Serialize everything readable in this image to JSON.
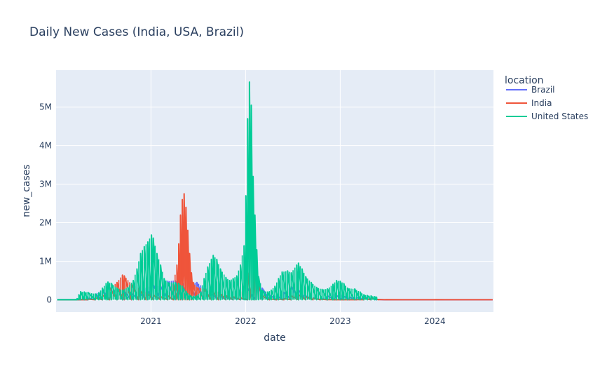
{
  "chart_data": {
    "type": "line",
    "title": "Daily New Cases (India, USA, Brazil)",
    "xlabel": "date",
    "ylabel": "new_cases",
    "x_axis": {
      "type": "date",
      "range": [
        "2020-01-01",
        "2024-08-14"
      ],
      "ticks": [
        "2021-01-01",
        "2022-01-01",
        "2023-01-01",
        "2024-01-01"
      ],
      "tick_labels": [
        "2021",
        "2022",
        "2023",
        "2024"
      ]
    },
    "y_axis": {
      "range": [
        -320000,
        5960000
      ],
      "ticks": [
        0,
        1000000,
        2000000,
        3000000,
        4000000,
        5000000
      ],
      "tick_labels": [
        "0",
        "1M",
        "2M",
        "3M",
        "4M",
        "5M"
      ]
    },
    "grid": true,
    "legend": {
      "title": "location",
      "placement": "right",
      "entries": [
        "Brazil",
        "India",
        "United States"
      ]
    },
    "series": [
      {
        "name": "Brazil",
        "color": "#636efa",
        "points": [
          [
            "2020-01-05",
            0
          ],
          [
            "2020-03-08",
            0
          ],
          [
            "2020-04-05",
            8000
          ],
          [
            "2020-05-03",
            40000
          ],
          [
            "2020-05-31",
            150000
          ],
          [
            "2020-06-28",
            250000
          ],
          [
            "2020-07-26",
            320000
          ],
          [
            "2020-08-23",
            280000
          ],
          [
            "2020-09-20",
            210000
          ],
          [
            "2020-10-18",
            160000
          ],
          [
            "2020-11-15",
            200000
          ],
          [
            "2020-12-13",
            300000
          ],
          [
            "2021-01-10",
            380000
          ],
          [
            "2021-02-07",
            350000
          ],
          [
            "2021-03-07",
            480000
          ],
          [
            "2021-04-04",
            500000
          ],
          [
            "2021-05-02",
            430000
          ],
          [
            "2021-05-30",
            420000
          ],
          [
            "2021-06-27",
            450000
          ],
          [
            "2021-07-25",
            300000
          ],
          [
            "2021-08-22",
            150000
          ],
          [
            "2021-09-19",
            120000
          ],
          [
            "2021-10-17",
            70000
          ],
          [
            "2021-11-14",
            60000
          ],
          [
            "2021-12-12",
            30000
          ],
          [
            "2022-01-09",
            300000
          ],
          [
            "2022-02-06",
            800000
          ],
          [
            "2022-03-06",
            300000
          ],
          [
            "2022-04-03",
            120000
          ],
          [
            "2022-05-01",
            100000
          ],
          [
            "2022-05-29",
            200000
          ],
          [
            "2022-06-26",
            350000
          ],
          [
            "2022-07-24",
            250000
          ],
          [
            "2022-08-21",
            100000
          ],
          [
            "2022-09-18",
            50000
          ],
          [
            "2022-10-16",
            30000
          ],
          [
            "2022-11-13",
            100000
          ],
          [
            "2022-12-11",
            150000
          ],
          [
            "2023-01-08",
            120000
          ],
          [
            "2023-02-05",
            70000
          ],
          [
            "2023-03-05",
            60000
          ],
          [
            "2023-04-02",
            50000
          ],
          [
            "2023-04-30",
            30000
          ],
          [
            "2023-05-21",
            10000
          ],
          [
            "2023-06-18",
            0
          ],
          [
            "2024-08-11",
            0
          ]
        ]
      },
      {
        "name": "India",
        "color": "#ef553b",
        "points": [
          [
            "2020-01-05",
            0
          ],
          [
            "2020-03-08",
            0
          ],
          [
            "2020-04-05",
            3000
          ],
          [
            "2020-05-03",
            15000
          ],
          [
            "2020-05-31",
            50000
          ],
          [
            "2020-06-28",
            120000
          ],
          [
            "2020-07-26",
            300000
          ],
          [
            "2020-08-23",
            450000
          ],
          [
            "2020-09-13",
            640000
          ],
          [
            "2020-09-20",
            620000
          ],
          [
            "2020-10-18",
            400000
          ],
          [
            "2020-11-15",
            300000
          ],
          [
            "2020-12-13",
            200000
          ],
          [
            "2021-01-10",
            120000
          ],
          [
            "2021-02-07",
            80000
          ],
          [
            "2021-03-07",
            110000
          ],
          [
            "2021-03-28",
            400000
          ],
          [
            "2021-04-11",
            900000
          ],
          [
            "2021-04-18",
            1450000
          ],
          [
            "2021-04-25",
            2200000
          ],
          [
            "2021-05-02",
            2600000
          ],
          [
            "2021-05-09",
            2750000
          ],
          [
            "2021-05-16",
            2400000
          ],
          [
            "2021-05-23",
            1800000
          ],
          [
            "2021-05-30",
            1200000
          ],
          [
            "2021-06-06",
            700000
          ],
          [
            "2021-06-13",
            450000
          ],
          [
            "2021-06-27",
            320000
          ],
          [
            "2021-07-25",
            280000
          ],
          [
            "2021-08-22",
            250000
          ],
          [
            "2021-09-19",
            200000
          ],
          [
            "2021-10-17",
            110000
          ],
          [
            "2021-11-14",
            80000
          ],
          [
            "2021-12-12",
            50000
          ],
          [
            "2022-01-09",
            700000
          ],
          [
            "2022-01-23",
            2000000
          ],
          [
            "2022-02-06",
            900000
          ],
          [
            "2022-03-06",
            100000
          ],
          [
            "2022-04-03",
            20000
          ],
          [
            "2022-05-01",
            20000
          ],
          [
            "2022-05-29",
            30000
          ],
          [
            "2022-06-26",
            100000
          ],
          [
            "2022-07-24",
            130000
          ],
          [
            "2022-08-21",
            80000
          ],
          [
            "2022-09-18",
            40000
          ],
          [
            "2022-10-16",
            15000
          ],
          [
            "2022-11-13",
            6000
          ],
          [
            "2022-12-11",
            2000
          ],
          [
            "2023-01-08",
            2000
          ],
          [
            "2023-02-05",
            1000
          ],
          [
            "2023-03-05",
            5000
          ],
          [
            "2023-04-02",
            30000
          ],
          [
            "2023-04-30",
            40000
          ],
          [
            "2023-05-28",
            5000
          ],
          [
            "2023-06-25",
            2000
          ],
          [
            "2023-09-01",
            1000
          ],
          [
            "2024-01-01",
            2000
          ],
          [
            "2024-08-11",
            300
          ]
        ]
      },
      {
        "name": "United States",
        "color": "#00cc96",
        "points": [
          [
            "2020-01-05",
            0
          ],
          [
            "2020-03-01",
            0
          ],
          [
            "2020-03-22",
            30000
          ],
          [
            "2020-03-29",
            130000
          ],
          [
            "2020-04-05",
            210000
          ],
          [
            "2020-04-19",
            200000
          ],
          [
            "2020-05-03",
            190000
          ],
          [
            "2020-05-31",
            150000
          ],
          [
            "2020-06-14",
            180000
          ],
          [
            "2020-06-28",
            300000
          ],
          [
            "2020-07-12",
            420000
          ],
          [
            "2020-07-19",
            460000
          ],
          [
            "2020-08-02",
            420000
          ],
          [
            "2020-08-23",
            300000
          ],
          [
            "2020-09-13",
            250000
          ],
          [
            "2020-10-04",
            320000
          ],
          [
            "2020-10-25",
            500000
          ],
          [
            "2020-11-08",
            800000
          ],
          [
            "2020-11-22",
            1200000
          ],
          [
            "2020-12-06",
            1380000
          ],
          [
            "2020-12-20",
            1500000
          ],
          [
            "2021-01-03",
            1680000
          ],
          [
            "2021-01-10",
            1600000
          ],
          [
            "2021-01-24",
            1200000
          ],
          [
            "2021-02-07",
            900000
          ],
          [
            "2021-02-21",
            550000
          ],
          [
            "2021-03-07",
            450000
          ],
          [
            "2021-04-04",
            450000
          ],
          [
            "2021-04-18",
            420000
          ],
          [
            "2021-05-02",
            350000
          ],
          [
            "2021-05-16",
            220000
          ],
          [
            "2021-05-30",
            120000
          ],
          [
            "2021-06-13",
            90000
          ],
          [
            "2021-06-27",
            100000
          ],
          [
            "2021-07-11",
            200000
          ],
          [
            "2021-07-25",
            550000
          ],
          [
            "2021-08-08",
            850000
          ],
          [
            "2021-08-22",
            1050000
          ],
          [
            "2021-08-29",
            1150000
          ],
          [
            "2021-09-12",
            1050000
          ],
          [
            "2021-09-26",
            800000
          ],
          [
            "2021-10-17",
            580000
          ],
          [
            "2021-10-31",
            500000
          ],
          [
            "2021-11-14",
            550000
          ],
          [
            "2021-11-28",
            620000
          ],
          [
            "2021-12-12",
            900000
          ],
          [
            "2021-12-26",
            1400000
          ],
          [
            "2022-01-02",
            2700000
          ],
          [
            "2022-01-09",
            4700000
          ],
          [
            "2022-01-16",
            5650000
          ],
          [
            "2022-01-23",
            5050000
          ],
          [
            "2022-01-30",
            3200000
          ],
          [
            "2022-02-06",
            2200000
          ],
          [
            "2022-02-13",
            1300000
          ],
          [
            "2022-02-20",
            600000
          ],
          [
            "2022-03-06",
            250000
          ],
          [
            "2022-03-27",
            200000
          ],
          [
            "2022-04-10",
            250000
          ],
          [
            "2022-04-24",
            350000
          ],
          [
            "2022-05-08",
            550000
          ],
          [
            "2022-05-22",
            720000
          ],
          [
            "2022-06-12",
            750000
          ],
          [
            "2022-06-26",
            700000
          ],
          [
            "2022-07-17",
            900000
          ],
          [
            "2022-07-24",
            950000
          ],
          [
            "2022-08-07",
            800000
          ],
          [
            "2022-08-21",
            600000
          ],
          [
            "2022-09-11",
            450000
          ],
          [
            "2022-10-02",
            320000
          ],
          [
            "2022-10-23",
            270000
          ],
          [
            "2022-11-13",
            280000
          ],
          [
            "2022-12-04",
            400000
          ],
          [
            "2022-12-18",
            500000
          ],
          [
            "2023-01-01",
            480000
          ],
          [
            "2023-01-15",
            420000
          ],
          [
            "2023-01-29",
            300000
          ],
          [
            "2023-02-26",
            280000
          ],
          [
            "2023-03-19",
            200000
          ],
          [
            "2023-04-02",
            130000
          ],
          [
            "2023-04-16",
            110000
          ],
          [
            "2023-04-30",
            100000
          ],
          [
            "2023-05-14",
            80000
          ],
          [
            "2023-05-21",
            70000
          ],
          [
            "2023-05-22",
            0
          ]
        ]
      }
    ]
  }
}
